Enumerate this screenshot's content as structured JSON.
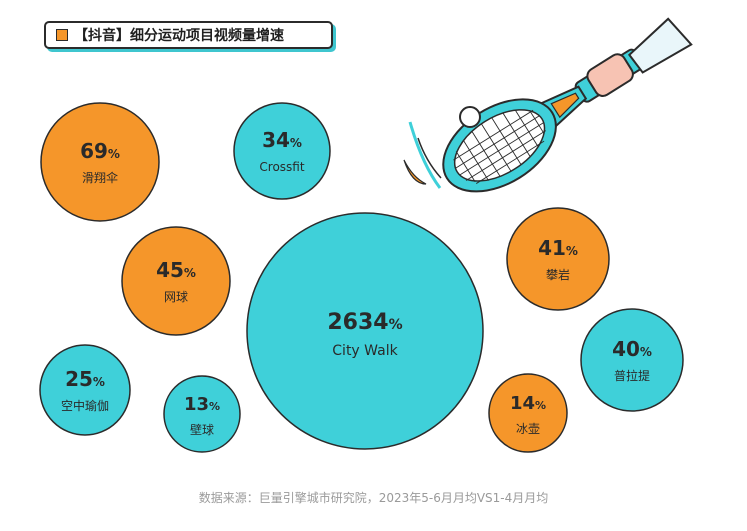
{
  "title": "【抖音】细分运动项目视频量增速",
  "source": "数据来源：巨量引擎城市研究院，2023年5-6月月均VS1-4月月均",
  "colors": {
    "orange": "#f5962a",
    "teal": "#3fd0d9",
    "outline": "#2b2b2b",
    "shadow": "#3fc6cf"
  },
  "icon": "tennis-racket-icon",
  "chart_data": {
    "type": "bubble",
    "unit": "%",
    "items": [
      {
        "label": "滑翔伞",
        "value": 69,
        "color": "orange"
      },
      {
        "label": "Crossfit",
        "value": 34,
        "color": "teal"
      },
      {
        "label": "网球",
        "value": 45,
        "color": "orange"
      },
      {
        "label": "City Walk",
        "value": 2634,
        "color": "teal"
      },
      {
        "label": "攀岩",
        "value": 41,
        "color": "orange"
      },
      {
        "label": "普拉提",
        "value": 40,
        "color": "teal"
      },
      {
        "label": "空中瑜伽",
        "value": 25,
        "color": "teal"
      },
      {
        "label": "壁球",
        "value": 13,
        "color": "teal"
      },
      {
        "label": "冰壶",
        "value": 14,
        "color": "orange"
      }
    ]
  }
}
